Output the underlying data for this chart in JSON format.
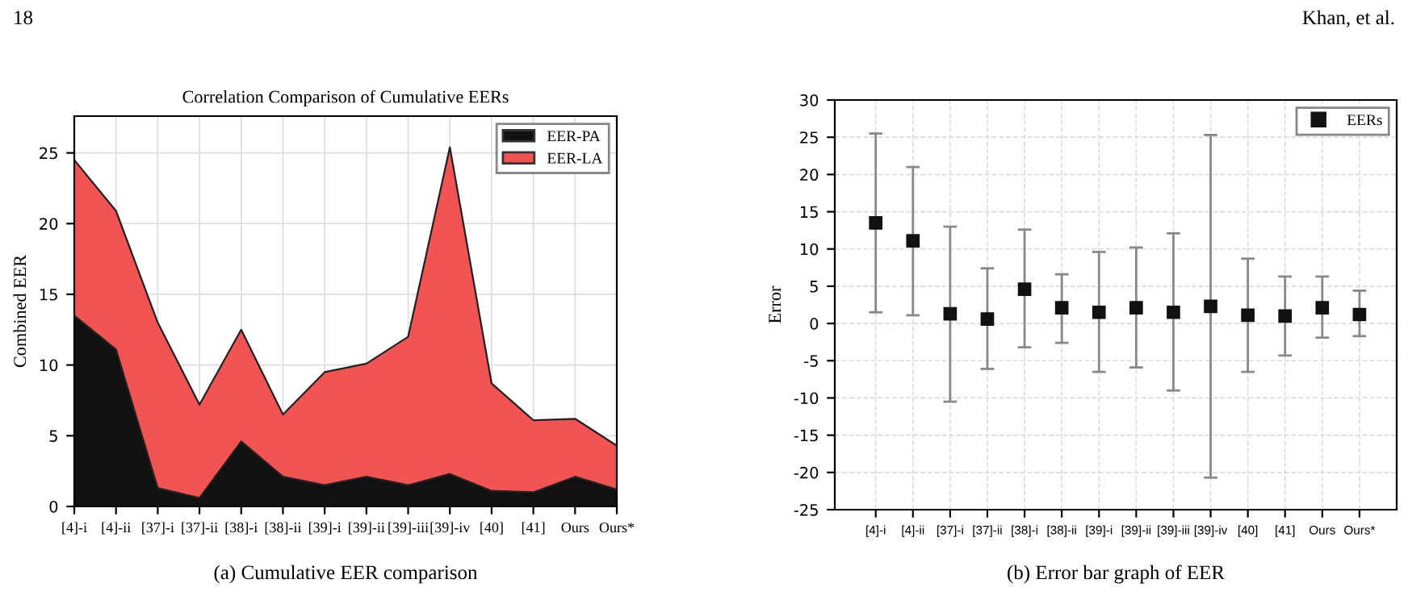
{
  "chart_data": [
    {
      "type": "area",
      "stacked": true,
      "title": "Correlation Comparison of Cumulative EERs",
      "ylabel": "Combined EER",
      "categories": [
        "[4]-i",
        "[4]-ii",
        "[37]-i",
        "[37]-ii",
        "[38]-i",
        "[38]-ii",
        "[39]-i",
        "[39]-ii",
        "[39]-iii",
        "[39]-iv",
        "[40]",
        "[41]",
        "Ours",
        "Ours*"
      ],
      "series": [
        {
          "name": "EER-PA",
          "color": "#111111",
          "values": [
            13.5,
            11.1,
            1.3,
            0.6,
            4.6,
            2.1,
            1.5,
            2.1,
            1.5,
            2.3,
            1.1,
            1.0,
            2.1,
            1.2
          ]
        },
        {
          "name": "EER-LA",
          "color": "#f25454",
          "values": [
            11.0,
            9.8,
            11.7,
            6.6,
            7.9,
            4.4,
            8.0,
            8.0,
            10.5,
            23.1,
            7.6,
            5.1,
            4.1,
            3.1
          ]
        }
      ],
      "ylim": [
        0,
        27.6
      ],
      "yticks": [
        0,
        5,
        10,
        15,
        20,
        25
      ],
      "grid": true,
      "legend": "top right",
      "annotations": [
        "18",
        "(a) Cumulative EER comparison"
      ]
    },
    {
      "type": "scatter",
      "ylabel": "Error",
      "marker": "square",
      "legend": "top right",
      "grid": true,
      "categories": [
        "[4]-i",
        "[4]-ii",
        "[37]-i",
        "[37]-ii",
        "[38]-i",
        "[38]-ii",
        "[39]-i",
        "[39]-ii",
        "[39]-iii",
        "[39]-iv",
        "[40]",
        "[41]",
        "Ours",
        "Ours*"
      ],
      "series": [
        {
          "name": "EERs",
          "color": "#111111",
          "values": [
            13.5,
            11.1,
            1.3,
            0.6,
            4.6,
            2.1,
            1.5,
            2.1,
            1.5,
            2.3,
            1.1,
            1.0,
            2.1,
            1.2
          ],
          "errors": [
            [
              1.5,
              25.5
            ],
            [
              1.1,
              21
            ],
            [
              -10.5,
              13
            ],
            [
              -6.1,
              7.4
            ],
            [
              -3.2,
              12.6
            ],
            [
              -2.6,
              6.6
            ],
            [
              -6.5,
              9.6
            ],
            [
              -5.9,
              10.2
            ],
            [
              -9,
              12.1
            ],
            [
              -20.7,
              25.3
            ],
            [
              -6.5,
              8.7
            ],
            [
              -4.3,
              6.3
            ],
            [
              -1.9,
              6.3
            ],
            [
              -1.7,
              4.4
            ]
          ]
        }
      ],
      "ylim": [
        -25,
        30
      ],
      "yticks": [
        -25,
        -20,
        -15,
        -10,
        -5,
        0,
        5,
        10,
        15,
        20,
        25,
        30
      ],
      "annotations": [
        "Khan, et al.",
        "(b) Error bar graph of EER"
      ]
    }
  ]
}
